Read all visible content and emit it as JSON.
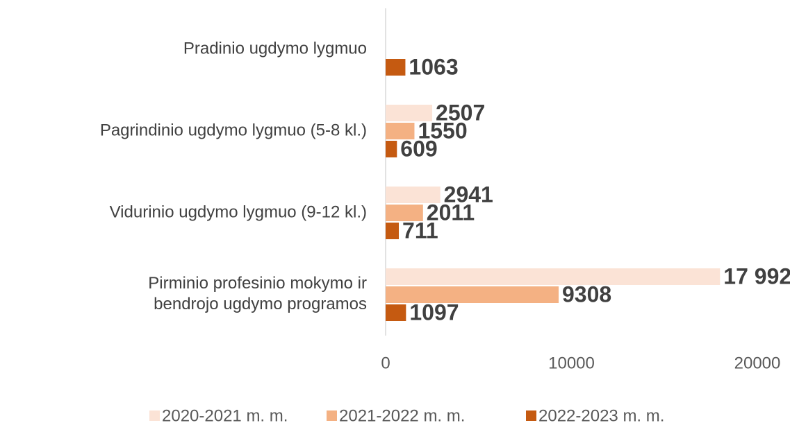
{
  "chart_data": {
    "type": "hbar",
    "categories": [
      "Pradinio ugdymo lygmuo",
      "Pagrindinio ugdymo lygmuo (5-8 kl.)",
      "Vidurinio ugdymo lygmuo (9-12 kl.)",
      "Pirminio profesinio mokymo ir\nbendrojo ugdymo programos"
    ],
    "series": [
      {
        "name": "2020-2021 m. m.",
        "color": "#fbe3d6",
        "values": [
          null,
          2507,
          2941,
          17992
        ],
        "value_labels": [
          null,
          "2507",
          "2941",
          "17 992"
        ]
      },
      {
        "name": "2021-2022 m. m.",
        "color": "#f4b183",
        "values": [
          null,
          1550,
          2011,
          9308
        ]
      },
      {
        "name": "2022-2023 m. m.",
        "color": "#c55a11",
        "values": [
          1063,
          609,
          711,
          1097
        ]
      }
    ],
    "xlim": [
      0,
      20000
    ],
    "xticks": [
      0,
      10000,
      20000
    ],
    "legend": "bottom"
  }
}
